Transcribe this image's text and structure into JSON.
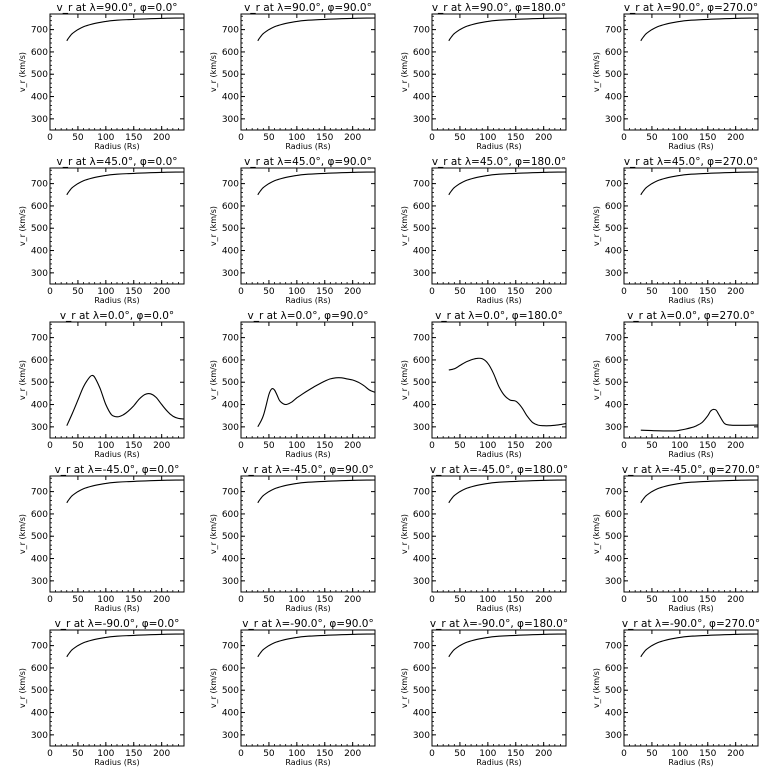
{
  "chart_data": [
    {
      "type": "line",
      "title": "v_r at λ=90.0°, φ=0.0°",
      "xlabel": "Radius (Rs)",
      "ylabel": "v_r (km/s)",
      "xlim": [
        0,
        240
      ],
      "ylim": [
        250,
        770
      ],
      "xticks": [
        0,
        50,
        100,
        150,
        200
      ],
      "yticks": [
        300,
        400,
        500,
        600,
        700
      ],
      "x": [
        30,
        35,
        40,
        50,
        60,
        70,
        80,
        100,
        120,
        150,
        180,
        210,
        240
      ],
      "y": [
        650,
        668,
        682,
        700,
        713,
        721,
        728,
        737,
        742,
        746,
        749,
        751,
        752
      ]
    },
    {
      "type": "line",
      "title": "v_r at λ=90.0°, φ=90.0°",
      "xlabel": "Radius (Rs)",
      "ylabel": "v_r (km/s)",
      "xlim": [
        0,
        240
      ],
      "ylim": [
        250,
        770
      ],
      "xticks": [
        0,
        50,
        100,
        150,
        200
      ],
      "yticks": [
        300,
        400,
        500,
        600,
        700
      ],
      "x": [
        30,
        35,
        40,
        50,
        60,
        70,
        80,
        100,
        120,
        150,
        180,
        210,
        240
      ],
      "y": [
        650,
        668,
        682,
        700,
        713,
        721,
        728,
        737,
        742,
        746,
        749,
        751,
        752
      ]
    },
    {
      "type": "line",
      "title": "v_r at λ=90.0°, φ=180.0°",
      "xlabel": "Radius (Rs)",
      "ylabel": "v_r (km/s)",
      "xlim": [
        0,
        240
      ],
      "ylim": [
        250,
        770
      ],
      "xticks": [
        0,
        50,
        100,
        150,
        200
      ],
      "yticks": [
        300,
        400,
        500,
        600,
        700
      ],
      "x": [
        30,
        35,
        40,
        50,
        60,
        70,
        80,
        100,
        120,
        150,
        180,
        210,
        240
      ],
      "y": [
        650,
        668,
        682,
        700,
        713,
        721,
        728,
        737,
        742,
        746,
        749,
        751,
        752
      ]
    },
    {
      "type": "line",
      "title": "v_r at λ=90.0°, φ=270.0°",
      "xlabel": "Radius (Rs)",
      "ylabel": "v_r (km/s)",
      "xlim": [
        0,
        240
      ],
      "ylim": [
        250,
        770
      ],
      "xticks": [
        0,
        50,
        100,
        150,
        200
      ],
      "yticks": [
        300,
        400,
        500,
        600,
        700
      ],
      "x": [
        30,
        35,
        40,
        50,
        60,
        70,
        80,
        100,
        120,
        150,
        180,
        210,
        240
      ],
      "y": [
        650,
        668,
        682,
        700,
        713,
        721,
        728,
        737,
        742,
        746,
        749,
        751,
        752
      ]
    },
    {
      "type": "line",
      "title": "v_r at λ=45.0°, φ=0.0°",
      "xlabel": "Radius (Rs)",
      "ylabel": "v_r (km/s)",
      "xlim": [
        0,
        240
      ],
      "ylim": [
        250,
        770
      ],
      "xticks": [
        0,
        50,
        100,
        150,
        200
      ],
      "yticks": [
        300,
        400,
        500,
        600,
        700
      ],
      "x": [
        30,
        35,
        40,
        50,
        60,
        70,
        80,
        100,
        120,
        150,
        180,
        210,
        240
      ],
      "y": [
        650,
        668,
        682,
        700,
        713,
        721,
        728,
        737,
        742,
        746,
        749,
        751,
        752
      ]
    },
    {
      "type": "line",
      "title": "v_r at λ=45.0°, φ=90.0°",
      "xlabel": "Radius (Rs)",
      "ylabel": "v_r (km/s)",
      "xlim": [
        0,
        240
      ],
      "ylim": [
        250,
        770
      ],
      "xticks": [
        0,
        50,
        100,
        150,
        200
      ],
      "yticks": [
        300,
        400,
        500,
        600,
        700
      ],
      "x": [
        30,
        35,
        40,
        50,
        60,
        70,
        80,
        100,
        120,
        150,
        180,
        210,
        240
      ],
      "y": [
        650,
        668,
        682,
        700,
        713,
        721,
        728,
        737,
        742,
        746,
        749,
        751,
        752
      ]
    },
    {
      "type": "line",
      "title": "v_r at λ=45.0°, φ=180.0°",
      "xlabel": "Radius (Rs)",
      "ylabel": "v_r (km/s)",
      "xlim": [
        0,
        240
      ],
      "ylim": [
        250,
        770
      ],
      "xticks": [
        0,
        50,
        100,
        150,
        200
      ],
      "yticks": [
        300,
        400,
        500,
        600,
        700
      ],
      "x": [
        30,
        35,
        40,
        50,
        60,
        70,
        80,
        100,
        120,
        150,
        180,
        210,
        240
      ],
      "y": [
        650,
        668,
        682,
        700,
        713,
        721,
        728,
        737,
        742,
        746,
        749,
        751,
        752
      ]
    },
    {
      "type": "line",
      "title": "v_r at λ=45.0°, φ=270.0°",
      "xlabel": "Radius (Rs)",
      "ylabel": "v_r (km/s)",
      "xlim": [
        0,
        240
      ],
      "ylim": [
        250,
        770
      ],
      "xticks": [
        0,
        50,
        100,
        150,
        200
      ],
      "yticks": [
        300,
        400,
        500,
        600,
        700
      ],
      "x": [
        30,
        35,
        40,
        50,
        60,
        70,
        80,
        100,
        120,
        150,
        180,
        210,
        240
      ],
      "y": [
        650,
        668,
        682,
        700,
        713,
        721,
        728,
        737,
        742,
        746,
        749,
        751,
        752
      ]
    },
    {
      "type": "line",
      "title": "v_r at λ=0.0°, φ=0.0°",
      "xlabel": "Radius (Rs)",
      "ylabel": "v_r (km/s)",
      "xlim": [
        0,
        240
      ],
      "ylim": [
        250,
        770
      ],
      "xticks": [
        0,
        50,
        100,
        150,
        200
      ],
      "yticks": [
        300,
        400,
        500,
        600,
        700
      ],
      "x": [
        30,
        40,
        50,
        60,
        70,
        75,
        80,
        90,
        100,
        110,
        120,
        130,
        140,
        150,
        160,
        170,
        180,
        190,
        200,
        210,
        220,
        230,
        240
      ],
      "y": [
        305,
        360,
        420,
        480,
        520,
        530,
        522,
        470,
        400,
        355,
        345,
        352,
        370,
        395,
        425,
        445,
        448,
        432,
        400,
        370,
        348,
        338,
        335
      ]
    },
    {
      "type": "line",
      "title": "v_r at λ=0.0°, φ=90.0°",
      "xlabel": "Radius (Rs)",
      "ylabel": "v_r (km/s)",
      "xlim": [
        0,
        240
      ],
      "ylim": [
        250,
        770
      ],
      "xticks": [
        0,
        50,
        100,
        150,
        200
      ],
      "yticks": [
        300,
        400,
        500,
        600,
        700
      ],
      "x": [
        30,
        40,
        50,
        55,
        60,
        65,
        70,
        80,
        90,
        100,
        110,
        120,
        130,
        140,
        150,
        160,
        170,
        180,
        190,
        200,
        210,
        220,
        230,
        240
      ],
      "y": [
        300,
        350,
        445,
        470,
        465,
        440,
        415,
        400,
        410,
        430,
        447,
        463,
        478,
        492,
        505,
        515,
        520,
        520,
        515,
        510,
        500,
        485,
        465,
        455
      ]
    },
    {
      "type": "line",
      "title": "v_r at λ=0.0°, φ=180.0°",
      "xlabel": "Radius (Rs)",
      "ylabel": "v_r (km/s)",
      "xlim": [
        0,
        240
      ],
      "ylim": [
        250,
        770
      ],
      "xticks": [
        0,
        50,
        100,
        150,
        200
      ],
      "yticks": [
        300,
        400,
        500,
        600,
        700
      ],
      "x": [
        30,
        40,
        50,
        60,
        70,
        80,
        90,
        100,
        110,
        120,
        130,
        140,
        150,
        160,
        170,
        180,
        190,
        200,
        210,
        220,
        230,
        240
      ],
      "y": [
        555,
        560,
        575,
        590,
        600,
        607,
        605,
        585,
        540,
        480,
        440,
        420,
        415,
        390,
        350,
        320,
        308,
        305,
        305,
        307,
        310,
        315
      ]
    },
    {
      "type": "line",
      "title": "v_r at λ=0.0°, φ=270.0°",
      "xlabel": "Radius (Rs)",
      "ylabel": "v_r (km/s)",
      "xlim": [
        0,
        240
      ],
      "ylim": [
        250,
        770
      ],
      "xticks": [
        0,
        50,
        100,
        150,
        200
      ],
      "yticks": [
        300,
        400,
        500,
        600,
        700
      ],
      "x": [
        30,
        50,
        70,
        90,
        100,
        110,
        120,
        130,
        140,
        150,
        155,
        160,
        165,
        170,
        180,
        190,
        200,
        220,
        240
      ],
      "y": [
        285,
        283,
        282,
        282,
        285,
        290,
        296,
        305,
        320,
        350,
        370,
        378,
        375,
        355,
        315,
        308,
        307,
        307,
        308
      ]
    },
    {
      "type": "line",
      "title": "v_r at λ=-45.0°, φ=0.0°",
      "xlabel": "Radius (Rs)",
      "ylabel": "v_r (km/s)",
      "xlim": [
        0,
        240
      ],
      "ylim": [
        250,
        770
      ],
      "xticks": [
        0,
        50,
        100,
        150,
        200
      ],
      "yticks": [
        300,
        400,
        500,
        600,
        700
      ],
      "x": [
        30,
        35,
        40,
        50,
        60,
        70,
        80,
        100,
        120,
        150,
        180,
        210,
        240
      ],
      "y": [
        650,
        668,
        682,
        700,
        713,
        721,
        728,
        737,
        742,
        746,
        749,
        751,
        752
      ]
    },
    {
      "type": "line",
      "title": "v_r at λ=-45.0°, φ=90.0°",
      "xlabel": "Radius (Rs)",
      "ylabel": "v_r (km/s)",
      "xlim": [
        0,
        240
      ],
      "ylim": [
        250,
        770
      ],
      "xticks": [
        0,
        50,
        100,
        150,
        200
      ],
      "yticks": [
        300,
        400,
        500,
        600,
        700
      ],
      "x": [
        30,
        35,
        40,
        50,
        60,
        70,
        80,
        100,
        120,
        150,
        180,
        210,
        240
      ],
      "y": [
        650,
        668,
        682,
        700,
        713,
        721,
        728,
        737,
        742,
        746,
        749,
        751,
        752
      ]
    },
    {
      "type": "line",
      "title": "v_r at λ=-45.0°, φ=180.0°",
      "xlabel": "Radius (Rs)",
      "ylabel": "v_r (km/s)",
      "xlim": [
        0,
        240
      ],
      "ylim": [
        250,
        770
      ],
      "xticks": [
        0,
        50,
        100,
        150,
        200
      ],
      "yticks": [
        300,
        400,
        500,
        600,
        700
      ],
      "x": [
        30,
        35,
        40,
        50,
        60,
        70,
        80,
        100,
        120,
        150,
        180,
        210,
        240
      ],
      "y": [
        650,
        668,
        682,
        700,
        713,
        721,
        728,
        737,
        742,
        746,
        749,
        751,
        752
      ]
    },
    {
      "type": "line",
      "title": "v_r at λ=-45.0°, φ=270.0°",
      "xlabel": "Radius (Rs)",
      "ylabel": "v_r (km/s)",
      "xlim": [
        0,
        240
      ],
      "ylim": [
        250,
        770
      ],
      "xticks": [
        0,
        50,
        100,
        150,
        200
      ],
      "yticks": [
        300,
        400,
        500,
        600,
        700
      ],
      "x": [
        30,
        35,
        40,
        50,
        60,
        70,
        80,
        100,
        120,
        150,
        180,
        210,
        240
      ],
      "y": [
        650,
        668,
        682,
        700,
        713,
        721,
        728,
        737,
        742,
        746,
        749,
        751,
        752
      ]
    },
    {
      "type": "line",
      "title": "v_r at λ=-90.0°, φ=0.0°",
      "xlabel": "Radius (Rs)",
      "ylabel": "v_r (km/s)",
      "xlim": [
        0,
        240
      ],
      "ylim": [
        250,
        770
      ],
      "xticks": [
        0,
        50,
        100,
        150,
        200
      ],
      "yticks": [
        300,
        400,
        500,
        600,
        700
      ],
      "x": [
        30,
        35,
        40,
        50,
        60,
        70,
        80,
        100,
        120,
        150,
        180,
        210,
        240
      ],
      "y": [
        650,
        668,
        682,
        700,
        713,
        721,
        728,
        737,
        742,
        746,
        749,
        751,
        752
      ]
    },
    {
      "type": "line",
      "title": "v_r at λ=-90.0°, φ=90.0°",
      "xlabel": "Radius (Rs)",
      "ylabel": "v_r (km/s)",
      "xlim": [
        0,
        240
      ],
      "ylim": [
        250,
        770
      ],
      "xticks": [
        0,
        50,
        100,
        150,
        200
      ],
      "yticks": [
        300,
        400,
        500,
        600,
        700
      ],
      "x": [
        30,
        35,
        40,
        50,
        60,
        70,
        80,
        100,
        120,
        150,
        180,
        210,
        240
      ],
      "y": [
        650,
        668,
        682,
        700,
        713,
        721,
        728,
        737,
        742,
        746,
        749,
        751,
        752
      ]
    },
    {
      "type": "line",
      "title": "v_r at λ=-90.0°, φ=180.0°",
      "xlabel": "Radius (Rs)",
      "ylabel": "v_r (km/s)",
      "xlim": [
        0,
        240
      ],
      "ylim": [
        250,
        770
      ],
      "xticks": [
        0,
        50,
        100,
        150,
        200
      ],
      "yticks": [
        300,
        400,
        500,
        600,
        700
      ],
      "x": [
        30,
        35,
        40,
        50,
        60,
        70,
        80,
        100,
        120,
        150,
        180,
        210,
        240
      ],
      "y": [
        650,
        668,
        682,
        700,
        713,
        721,
        728,
        737,
        742,
        746,
        749,
        751,
        752
      ]
    },
    {
      "type": "line",
      "title": "v_r at λ=-90.0°, φ=270.0°",
      "xlabel": "Radius (Rs)",
      "ylabel": "v_r (km/s)",
      "xlim": [
        0,
        240
      ],
      "ylim": [
        250,
        770
      ],
      "xticks": [
        0,
        50,
        100,
        150,
        200
      ],
      "yticks": [
        300,
        400,
        500,
        600,
        700
      ],
      "x": [
        30,
        35,
        40,
        50,
        60,
        70,
        80,
        100,
        120,
        150,
        180,
        210,
        240
      ],
      "y": [
        650,
        668,
        682,
        700,
        713,
        721,
        728,
        737,
        742,
        746,
        749,
        751,
        752
      ]
    }
  ]
}
